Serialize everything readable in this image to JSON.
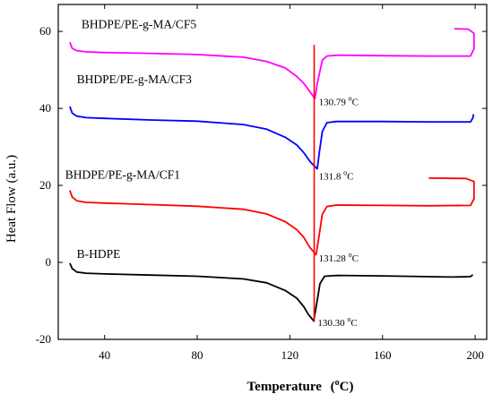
{
  "chart_data": {
    "type": "line",
    "xlabel": "Temperature",
    "xlabel_unit_open": "(",
    "xlabel_unit_sup": "o",
    "xlabel_unit_tail": "C)",
    "ylabel": "Heat Flow (a.u.)",
    "xlim": [
      20,
      205
    ],
    "ylim": [
      -20,
      67
    ],
    "xticks": [
      40,
      80,
      120,
      160,
      200
    ],
    "yticks": [
      -20,
      0,
      20,
      40,
      60
    ],
    "grid": false,
    "legend": "none",
    "series": [
      {
        "name": "B-HDPE",
        "color": "#000000",
        "label_pos": [
          28,
          1.2
        ],
        "peak": {
          "x": 130.3,
          "y": -15.2,
          "label": "130.30 ",
          "sup": "o",
          "unit": "C",
          "label_at": [
            132,
            -16.5
          ]
        },
        "points": [
          [
            25,
            -0.2
          ],
          [
            26,
            -1.6
          ],
          [
            28,
            -2.5
          ],
          [
            32,
            -2.8
          ],
          [
            40,
            -3
          ],
          [
            60,
            -3.3
          ],
          [
            80,
            -3.6
          ],
          [
            100,
            -4.3
          ],
          [
            110,
            -5.3
          ],
          [
            118,
            -7.3
          ],
          [
            123,
            -9.3
          ],
          [
            126,
            -11.5
          ],
          [
            128,
            -13.5
          ],
          [
            130.3,
            -15.2
          ],
          [
            131.5,
            -11
          ],
          [
            133,
            -5.5
          ],
          [
            135,
            -3.6
          ],
          [
            140,
            -3.4
          ],
          [
            160,
            -3.5
          ],
          [
            190,
            -3.8
          ],
          [
            198,
            -3.7
          ],
          [
            199,
            -3.2
          ]
        ]
      },
      {
        "name": "BHDPE/PE-g-MA/CF1",
        "color": "#ff0000",
        "label_pos": [
          23,
          21.7
        ],
        "peak": {
          "x": 131.3,
          "y": 2.0,
          "label": "131.28 ",
          "sup": "o",
          "unit": "C",
          "label_at": [
            132.5,
            0.2
          ]
        },
        "points": [
          [
            25,
            18.7
          ],
          [
            26,
            17
          ],
          [
            28,
            16
          ],
          [
            32,
            15.6
          ],
          [
            40,
            15.4
          ],
          [
            60,
            15
          ],
          [
            80,
            14.6
          ],
          [
            100,
            13.8
          ],
          [
            110,
            12.6
          ],
          [
            118,
            10.6
          ],
          [
            123,
            8.5
          ],
          [
            126,
            6.5
          ],
          [
            128.5,
            4
          ],
          [
            131.3,
            2
          ],
          [
            132.5,
            6.5
          ],
          [
            134,
            12.5
          ],
          [
            136,
            14.5
          ],
          [
            140,
            14.9
          ],
          [
            160,
            14.8
          ],
          [
            180,
            14.7
          ],
          [
            198,
            14.8
          ],
          [
            199.5,
            16.5
          ],
          [
            199.5,
            21
          ],
          [
            196,
            21.8
          ],
          [
            180,
            21.9
          ]
        ]
      },
      {
        "name": "BHDPE/PE-g-MA/CF3",
        "color": "#0000ff",
        "label_pos": [
          28,
          46.5
        ],
        "peak": {
          "x": 131.8,
          "y": 24.3,
          "label": "131.8 ",
          "sup": "o",
          "unit": "C",
          "label_at": [
            132.5,
            21.5
          ]
        },
        "points": [
          [
            25,
            40.5
          ],
          [
            26,
            38.8
          ],
          [
            28,
            38
          ],
          [
            32,
            37.6
          ],
          [
            40,
            37.4
          ],
          [
            60,
            37
          ],
          [
            80,
            36.7
          ],
          [
            100,
            35.8
          ],
          [
            110,
            34.6
          ],
          [
            118,
            32.5
          ],
          [
            123,
            30.5
          ],
          [
            126,
            28.5
          ],
          [
            129,
            26
          ],
          [
            131.8,
            24.3
          ],
          [
            132.8,
            29
          ],
          [
            134,
            34
          ],
          [
            136,
            36.3
          ],
          [
            140,
            36.6
          ],
          [
            160,
            36.6
          ],
          [
            180,
            36.5
          ],
          [
            198,
            36.5
          ],
          [
            199,
            37.5
          ],
          [
            199.3,
            38.5
          ]
        ]
      },
      {
        "name": "BHDPE/PE-g-MA/CF5",
        "color": "#ff00ff",
        "label_pos": [
          30,
          60.8
        ],
        "peak": {
          "x": 130.8,
          "y": 42.5,
          "label": "130.79 ",
          "sup": "o",
          "unit": "C",
          "label_at": [
            132.5,
            40.8
          ]
        },
        "points": [
          [
            25,
            57.2
          ],
          [
            26,
            55.6
          ],
          [
            28,
            55
          ],
          [
            32,
            54.7
          ],
          [
            40,
            54.5
          ],
          [
            60,
            54.3
          ],
          [
            80,
            54
          ],
          [
            100,
            53.3
          ],
          [
            110,
            52.2
          ],
          [
            118,
            50.5
          ],
          [
            123,
            48.3
          ],
          [
            126,
            46.5
          ],
          [
            128.5,
            44.5
          ],
          [
            130.8,
            42.5
          ],
          [
            132,
            47
          ],
          [
            134,
            52.5
          ],
          [
            136,
            53.6
          ],
          [
            140,
            53.8
          ],
          [
            160,
            53.7
          ],
          [
            180,
            53.6
          ],
          [
            198,
            53.6
          ],
          [
            199.5,
            55.5
          ],
          [
            199.5,
            59.5
          ],
          [
            197,
            60.6
          ],
          [
            191,
            60.7
          ]
        ]
      }
    ],
    "spike": {
      "x": 130.5,
      "y_top": 56.5,
      "y_bottom": -15.5,
      "color": "#ff0000"
    }
  }
}
